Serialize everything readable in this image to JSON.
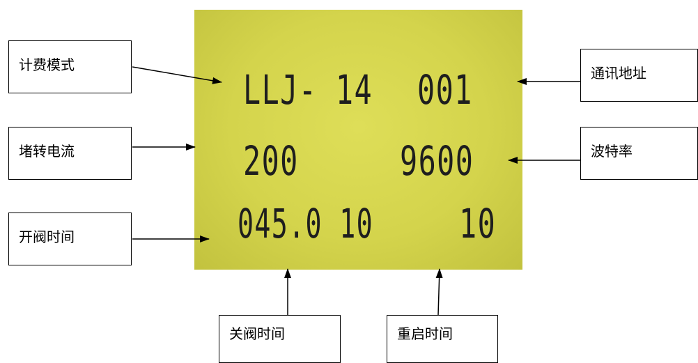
{
  "labels": {
    "billing_mode": "计费模式",
    "stall_current": "堵转电流",
    "open_valve_time": "开阀时间",
    "comm_address": "通讯地址",
    "baud_rate": "波特率",
    "close_valve_time": "关阀时间",
    "restart_time": "重启时间"
  },
  "lcd": {
    "row1_left": "LLJ- 14",
    "row1_right": "001",
    "row2_left": "200",
    "row2_right": "9600",
    "row3_left": "045.0 10",
    "row3_right": "10"
  },
  "colors": {
    "lcd_background": "#d8d850",
    "lcd_segments": "#1e1e1e",
    "border": "#000000"
  }
}
